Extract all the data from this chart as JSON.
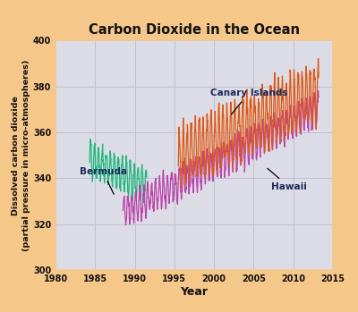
{
  "title": "Carbon Dioxide in the Ocean",
  "xlabel": "Year",
  "ylabel": "Dissolved carbon dioxide\n(partial pressure in micro-atmospheres)",
  "xlim": [
    1980,
    2015
  ],
  "ylim": [
    300,
    400
  ],
  "xticks": [
    1980,
    1985,
    1990,
    1995,
    2000,
    2005,
    2010,
    2015
  ],
  "yticks": [
    300,
    320,
    340,
    360,
    380,
    400
  ],
  "background_color": "#F5C88A",
  "plot_bg_color": "#DCDCE6",
  "grid_color": "#C0C0CE",
  "title_color": "#111111",
  "label_color": "#111111",
  "bermuda_color": "#1DB87A",
  "hawaii_color": "#BB44AA",
  "canary_color": "#E05810",
  "annotation_color": "#1A2A5A",
  "bermuda_start_year": 1984.3,
  "bermuda_end_year": 1991.5,
  "hawaii_start_year": 1988.5,
  "hawaii_end_year": 2013.2,
  "canary_start_year": 1995.5,
  "canary_end_year": 2013.2
}
